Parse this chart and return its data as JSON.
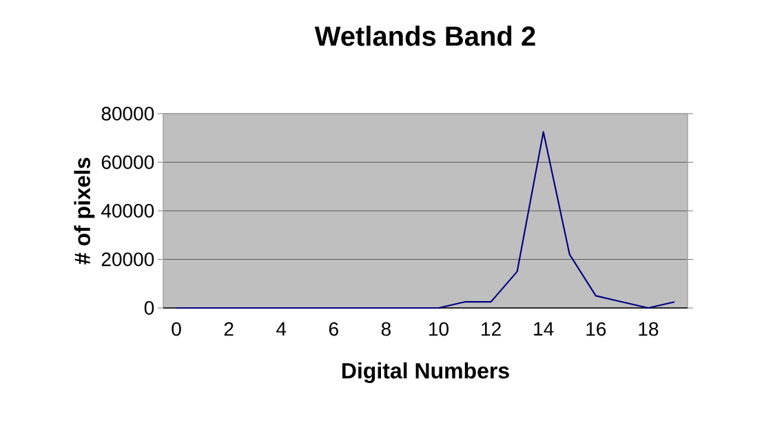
{
  "chart_data": {
    "type": "line",
    "title": "Wetlands Band 2",
    "xlabel": "Digital Numbers",
    "ylabel": "# of pixels",
    "categories": [
      "0",
      null,
      "2",
      null,
      "4",
      null,
      "6",
      null,
      "8",
      null,
      "10",
      null,
      "12",
      null,
      "14",
      null,
      "16",
      null,
      "18",
      null
    ],
    "values": [
      0,
      0,
      0,
      0,
      0,
      0,
      0,
      0,
      0,
      0,
      0,
      2500,
      2500,
      15000,
      72500,
      22000,
      5000,
      2500,
      0,
      2500
    ],
    "color": "#000080",
    "ylim": [
      0,
      80000
    ],
    "yticks": [
      0,
      20000,
      40000,
      60000,
      80000
    ],
    "grid": "y",
    "marker": "none",
    "line_style": "solid"
  }
}
